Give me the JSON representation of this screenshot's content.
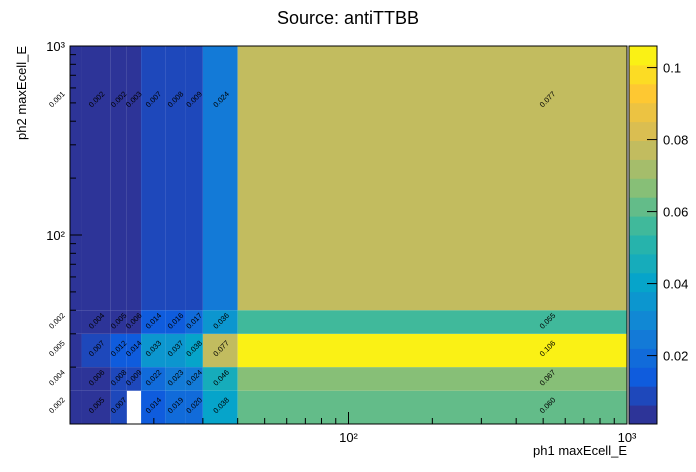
{
  "chart_data": {
    "type": "heatmap",
    "title": "Source: antiTTBB",
    "xlabel": "ph1 maxEcell_E",
    "ylabel": "ph2 maxEcell_E",
    "x_edges": [
      7,
      11,
      14,
      16,
      18,
      22,
      26,
      30,
      40,
      1000
    ],
    "y_edges": [
      10,
      15,
      20,
      30,
      40,
      1000
    ],
    "values": [
      [
        0.002,
        0.005,
        0.007,
        null,
        0.014,
        0.019,
        0.02,
        0.038,
        0.06
      ],
      [
        0.004,
        0.006,
        0.008,
        0.009,
        0.022,
        0.023,
        0.024,
        0.046,
        0.067
      ],
      [
        0.005,
        0.007,
        0.012,
        0.014,
        0.033,
        0.037,
        0.038,
        0.077,
        0.106
      ],
      [
        0.002,
        0.004,
        0.005,
        0.006,
        0.014,
        0.016,
        0.017,
        0.036,
        0.055
      ],
      [
        0.001,
        0.002,
        0.002,
        0.003,
        0.007,
        0.008,
        0.009,
        0.024,
        0.077
      ]
    ],
    "value_labels": [
      [
        "0.002",
        "0.005",
        "0.007",
        null,
        "0.014",
        "0.019",
        "0.020",
        "0.038",
        "0.060"
      ],
      [
        "0.004",
        "0.006",
        "0.008",
        "0.009",
        "0.022",
        "0.023",
        "0.024",
        "0.046",
        "0.067"
      ],
      [
        "0.005",
        "0.007",
        "0.012",
        "0.014",
        "0.033",
        "0.037",
        "0.038",
        "0.077",
        "0.106"
      ],
      [
        "0.002",
        "0.004",
        "0.005",
        "0.006",
        "0.014",
        "0.016",
        "0.017",
        "0.036",
        "0.055"
      ],
      [
        "0.001",
        "0.002",
        "0.002",
        "0.003",
        "0.007",
        "0.008",
        "0.009",
        "0.024",
        "0.077"
      ]
    ],
    "xscale": "log",
    "yscale": "log",
    "xlim": [
      10,
      1000
    ],
    "ylim": [
      10,
      1000
    ],
    "xticks": [
      {
        "value": 100,
        "label": "10²"
      },
      {
        "value": 1000,
        "label": "10³"
      }
    ],
    "yticks": [
      {
        "value": 100,
        "label": "10²"
      },
      {
        "value": 1000,
        "label": "10³"
      }
    ],
    "xminorticks": [
      20,
      30,
      40,
      50,
      60,
      70,
      80,
      90,
      200,
      300,
      400,
      500,
      600,
      700,
      800,
      900
    ],
    "yminorticks": [
      20,
      30,
      40,
      50,
      60,
      70,
      80,
      90,
      200,
      300,
      400,
      500,
      600,
      700,
      800,
      900
    ],
    "zlim": [
      0.001,
      0.106
    ],
    "zticks": [
      0.02,
      0.04,
      0.06,
      0.08,
      0.1
    ],
    "levels": 20,
    "palette_colors": [
      "#352a87",
      "#0f5cdd",
      "#1481d6",
      "#06a4ca",
      "#2eb7a4",
      "#87bf77",
      "#d1bb59",
      "#fec832",
      "#f9fb0e"
    ]
  }
}
